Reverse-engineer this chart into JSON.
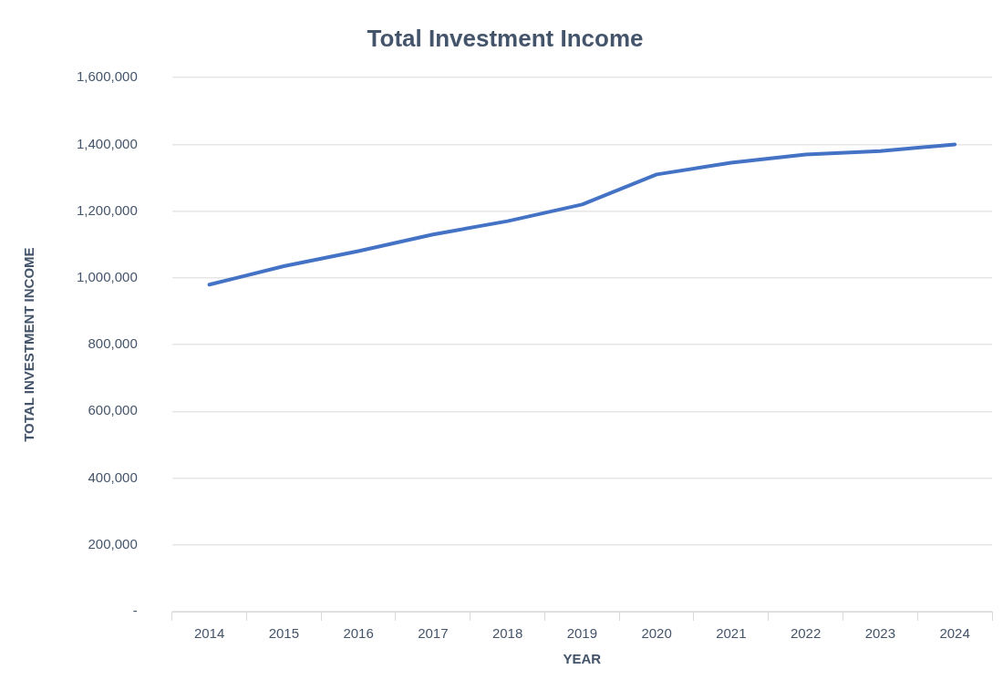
{
  "chart_data": {
    "type": "line",
    "title": "Total Investment Income",
    "xlabel": "YEAR",
    "ylabel": "TOTAL INVESTMENT INCOME",
    "categories": [
      "2014",
      "2015",
      "2016",
      "2017",
      "2018",
      "2019",
      "2020",
      "2021",
      "2022",
      "2023",
      "2024"
    ],
    "series": [
      {
        "color": "#4472c4",
        "values": [
          980000,
          1035000,
          1080000,
          1130000,
          1170000,
          1220000,
          1310000,
          1345000,
          1370000,
          1380000,
          1400000
        ]
      }
    ],
    "ylim": [
      0,
      1600000
    ],
    "yticks": [
      {
        "value": 0,
        "label": "-"
      },
      {
        "value": 200000,
        "label": "200,000"
      },
      {
        "value": 400000,
        "label": "400,000"
      },
      {
        "value": 600000,
        "label": "600,000"
      },
      {
        "value": 800000,
        "label": "800,000"
      },
      {
        "value": 1000000,
        "label": "1,000,000"
      },
      {
        "value": 1200000,
        "label": "1,200,000"
      },
      {
        "value": 1400000,
        "label": "1,400,000"
      },
      {
        "value": 1600000,
        "label": "1,600,000"
      }
    ],
    "grid": "y",
    "marker": "none"
  }
}
